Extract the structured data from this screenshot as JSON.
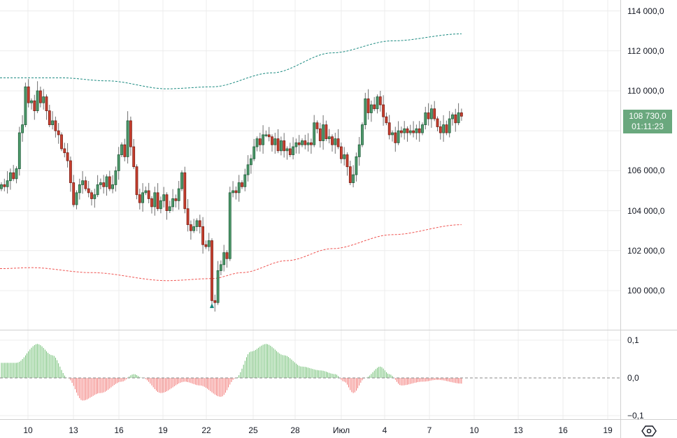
{
  "chart_data": {
    "type": "candlestick",
    "interval_note": "",
    "price_axis": {
      "ticks": [
        "114 000,0",
        "112 000,0",
        "110 000,0",
        "106 000,0",
        "104 000,0",
        "102 000,0",
        "100 000,0"
      ],
      "tick_values": [
        114000,
        112000,
        110000,
        106000,
        104000,
        102000,
        100000
      ],
      "ylim": [
        98000,
        114500
      ]
    },
    "time_axis": {
      "ticks": [
        "10",
        "13",
        "16",
        "19",
        "22",
        "25",
        "28",
        "Июл",
        "4",
        "7",
        "10",
        "13",
        "16",
        "19"
      ]
    },
    "last_price": {
      "price": "108 730,0",
      "countdown": "01:11:23",
      "color": "#6aa87e"
    },
    "first_open": 105100,
    "closes": [
      105300,
      105200,
      105500,
      105900,
      105600,
      106100,
      107900,
      108300,
      110200,
      109400,
      109500,
      109000,
      110000,
      109400,
      109700,
      109000,
      108300,
      108500,
      108000,
      107800,
      107100,
      106900,
      106500,
      105400,
      104300,
      104900,
      105300,
      105500,
      105100,
      104900,
      104600,
      104800,
      105300,
      105400,
      105200,
      105700,
      105100,
      105300,
      106000,
      106800,
      107300,
      106700,
      108500,
      107200,
      106200,
      104800,
      104400,
      104900,
      105000,
      104600,
      104200,
      104900,
      104100,
      104500,
      104800,
      104000,
      104200,
      104600,
      104500,
      105100,
      105900,
      104100,
      103300,
      103000,
      103200,
      103500,
      103200,
      102300,
      102200,
      102500,
      99500,
      99400,
      101000,
      101300,
      101900,
      101600,
      104900,
      105000,
      104900,
      105400,
      105200,
      105800,
      106300,
      106600,
      107200,
      107600,
      107300,
      107800,
      107800,
      107700,
      107300,
      107600,
      107000,
      107500,
      107000,
      107100,
      106800,
      107200,
      107400,
      107300,
      107500,
      107300,
      107400,
      107300,
      108400,
      108100,
      107500,
      108300,
      107600,
      107700,
      107300,
      107600,
      107200,
      106600,
      106800,
      106200,
      105400,
      105800,
      106700,
      107300,
      108300,
      109600,
      108900,
      109300,
      109100,
      109700,
      109300,
      108700,
      108400,
      107800,
      107900,
      107400,
      108000,
      107900,
      108100,
      107900,
      108000,
      107900,
      108100,
      107900,
      108300,
      108900,
      108600,
      109100,
      108600,
      108200,
      107900,
      108300,
      107900,
      108600,
      108800,
      108400,
      108900,
      108730
    ],
    "upper_band": [
      [
        0,
        110650
      ],
      [
        20,
        110650
      ],
      [
        35,
        110500
      ],
      [
        55,
        110100
      ],
      [
        70,
        110200
      ],
      [
        90,
        110900
      ],
      [
        110,
        111900
      ],
      [
        130,
        112500
      ],
      [
        153,
        112850
      ]
    ],
    "lower_band": [
      [
        0,
        101100
      ],
      [
        10,
        101150
      ],
      [
        30,
        100900
      ],
      [
        55,
        100500
      ],
      [
        70,
        100600
      ],
      [
        80,
        100900
      ],
      [
        95,
        101500
      ],
      [
        110,
        102100
      ],
      [
        130,
        102800
      ],
      [
        153,
        103300
      ]
    ],
    "oscillator": {
      "ticks": [
        "0,1",
        "0,0",
        "−0,1"
      ],
      "tick_values": [
        0.1,
        0,
        -0.1
      ],
      "keypoints": [
        [
          0,
          0.04
        ],
        [
          5,
          0.04
        ],
        [
          12,
          0.09
        ],
        [
          17,
          0.06
        ],
        [
          22,
          0
        ],
        [
          27,
          -0.06
        ],
        [
          33,
          -0.04
        ],
        [
          40,
          -0.01
        ],
        [
          44,
          0.01
        ],
        [
          47,
          0
        ],
        [
          53,
          -0.04
        ],
        [
          61,
          -0.01
        ],
        [
          66,
          -0.02
        ],
        [
          73,
          -0.05
        ],
        [
          78,
          0
        ],
        [
          83,
          0.07
        ],
        [
          88,
          0.09
        ],
        [
          94,
          0.06
        ],
        [
          100,
          0.03
        ],
        [
          106,
          0.02
        ],
        [
          111,
          0.01
        ],
        [
          114,
          -0.01
        ],
        [
          117,
          -0.04
        ],
        [
          121,
          0
        ],
        [
          126,
          0.03
        ],
        [
          129,
          0.01
        ],
        [
          133,
          -0.02
        ],
        [
          140,
          -0.01
        ],
        [
          145,
          -0.005
        ],
        [
          153,
          -0.015
        ]
      ]
    },
    "colors": {
      "up": "#4f9a6c",
      "down": "#c9402f",
      "upper_band": "#1a8a80",
      "lower_band": "#ef5350"
    }
  }
}
